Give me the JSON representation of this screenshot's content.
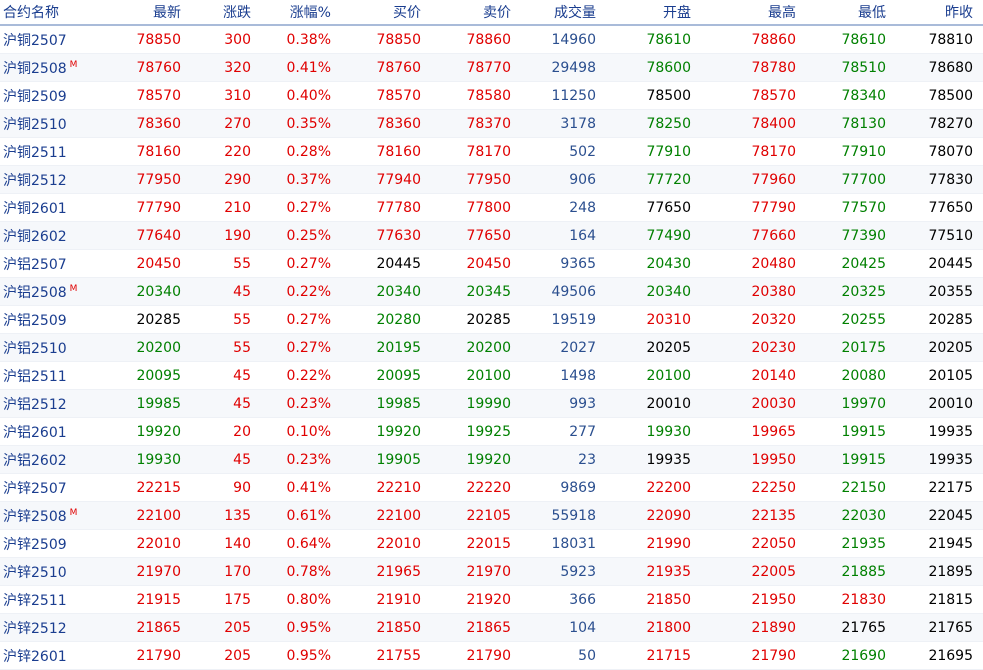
{
  "columns": [
    "合约名称",
    "最新",
    "涨跌",
    "涨幅%",
    "买价",
    "卖价",
    "成交量",
    "开盘",
    "最高",
    "最低",
    "昨收"
  ],
  "colors": {
    "up": "#e00000",
    "down": "#008000",
    "flat": "#000000",
    "volume": "#2b4f8f",
    "name": "#1a3d8f"
  },
  "rows": [
    {
      "name": "沪铜2507",
      "main": "",
      "last": "78850",
      "chg": "300",
      "pct": "0.38%",
      "bid": "78850",
      "ask": "78860",
      "vol": "14960",
      "open": "78610",
      "high": "78860",
      "low": "78610",
      "prev": "78810"
    },
    {
      "name": "沪铜2508",
      "main": "M",
      "last": "78760",
      "chg": "320",
      "pct": "0.41%",
      "bid": "78760",
      "ask": "78770",
      "vol": "29498",
      "open": "78600",
      "high": "78780",
      "low": "78510",
      "prev": "78680"
    },
    {
      "name": "沪铜2509",
      "main": "",
      "last": "78570",
      "chg": "310",
      "pct": "0.40%",
      "bid": "78570",
      "ask": "78580",
      "vol": "11250",
      "open": "78500",
      "high": "78570",
      "low": "78340",
      "prev": "78500"
    },
    {
      "name": "沪铜2510",
      "main": "",
      "last": "78360",
      "chg": "270",
      "pct": "0.35%",
      "bid": "78360",
      "ask": "78370",
      "vol": "3178",
      "open": "78250",
      "high": "78400",
      "low": "78130",
      "prev": "78270"
    },
    {
      "name": "沪铜2511",
      "main": "",
      "last": "78160",
      "chg": "220",
      "pct": "0.28%",
      "bid": "78160",
      "ask": "78170",
      "vol": "502",
      "open": "77910",
      "high": "78170",
      "low": "77910",
      "prev": "78070"
    },
    {
      "name": "沪铜2512",
      "main": "",
      "last": "77950",
      "chg": "290",
      "pct": "0.37%",
      "bid": "77940",
      "ask": "77950",
      "vol": "906",
      "open": "77720",
      "high": "77960",
      "low": "77700",
      "prev": "77830"
    },
    {
      "name": "沪铜2601",
      "main": "",
      "last": "77790",
      "chg": "210",
      "pct": "0.27%",
      "bid": "77780",
      "ask": "77800",
      "vol": "248",
      "open": "77650",
      "high": "77790",
      "low": "77570",
      "prev": "77650"
    },
    {
      "name": "沪铜2602",
      "main": "",
      "last": "77640",
      "chg": "190",
      "pct": "0.25%",
      "bid": "77630",
      "ask": "77650",
      "vol": "164",
      "open": "77490",
      "high": "77660",
      "low": "77390",
      "prev": "77510"
    },
    {
      "name": "沪铝2507",
      "main": "",
      "last": "20450",
      "chg": "55",
      "pct": "0.27%",
      "bid": "20445",
      "ask": "20450",
      "vol": "9365",
      "open": "20430",
      "high": "20480",
      "low": "20425",
      "prev": "20445"
    },
    {
      "name": "沪铝2508",
      "main": "M",
      "last": "20340",
      "chg": "45",
      "pct": "0.22%",
      "bid": "20340",
      "ask": "20345",
      "vol": "49506",
      "open": "20340",
      "high": "20380",
      "low": "20325",
      "prev": "20355"
    },
    {
      "name": "沪铝2509",
      "main": "",
      "last": "20285",
      "chg": "55",
      "pct": "0.27%",
      "bid": "20280",
      "ask": "20285",
      "vol": "19519",
      "open": "20310",
      "high": "20320",
      "low": "20255",
      "prev": "20285"
    },
    {
      "name": "沪铝2510",
      "main": "",
      "last": "20200",
      "chg": "55",
      "pct": "0.27%",
      "bid": "20195",
      "ask": "20200",
      "vol": "2027",
      "open": "20205",
      "high": "20230",
      "low": "20175",
      "prev": "20205"
    },
    {
      "name": "沪铝2511",
      "main": "",
      "last": "20095",
      "chg": "45",
      "pct": "0.22%",
      "bid": "20095",
      "ask": "20100",
      "vol": "1498",
      "open": "20100",
      "high": "20140",
      "low": "20080",
      "prev": "20105"
    },
    {
      "name": "沪铝2512",
      "main": "",
      "last": "19985",
      "chg": "45",
      "pct": "0.23%",
      "bid": "19985",
      "ask": "19990",
      "vol": "993",
      "open": "20010",
      "high": "20030",
      "low": "19970",
      "prev": "20010"
    },
    {
      "name": "沪铝2601",
      "main": "",
      "last": "19920",
      "chg": "20",
      "pct": "0.10%",
      "bid": "19920",
      "ask": "19925",
      "vol": "277",
      "open": "19930",
      "high": "19965",
      "low": "19915",
      "prev": "19935"
    },
    {
      "name": "沪铝2602",
      "main": "",
      "last": "19930",
      "chg": "45",
      "pct": "0.23%",
      "bid": "19905",
      "ask": "19920",
      "vol": "23",
      "open": "19935",
      "high": "19950",
      "low": "19915",
      "prev": "19935"
    },
    {
      "name": "沪锌2507",
      "main": "",
      "last": "22215",
      "chg": "90",
      "pct": "0.41%",
      "bid": "22210",
      "ask": "22220",
      "vol": "9869",
      "open": "22200",
      "high": "22250",
      "low": "22150",
      "prev": "22175"
    },
    {
      "name": "沪锌2508",
      "main": "M",
      "last": "22100",
      "chg": "135",
      "pct": "0.61%",
      "bid": "22100",
      "ask": "22105",
      "vol": "55918",
      "open": "22090",
      "high": "22135",
      "low": "22030",
      "prev": "22045"
    },
    {
      "name": "沪锌2509",
      "main": "",
      "last": "22010",
      "chg": "140",
      "pct": "0.64%",
      "bid": "22010",
      "ask": "22015",
      "vol": "18031",
      "open": "21990",
      "high": "22050",
      "low": "21935",
      "prev": "21945"
    },
    {
      "name": "沪锌2510",
      "main": "",
      "last": "21970",
      "chg": "170",
      "pct": "0.78%",
      "bid": "21965",
      "ask": "21970",
      "vol": "5923",
      "open": "21935",
      "high": "22005",
      "low": "21885",
      "prev": "21895"
    },
    {
      "name": "沪锌2511",
      "main": "",
      "last": "21915",
      "chg": "175",
      "pct": "0.80%",
      "bid": "21910",
      "ask": "21920",
      "vol": "366",
      "open": "21850",
      "high": "21950",
      "low": "21830",
      "prev": "21815"
    },
    {
      "name": "沪锌2512",
      "main": "",
      "last": "21865",
      "chg": "205",
      "pct": "0.95%",
      "bid": "21850",
      "ask": "21865",
      "vol": "104",
      "open": "21800",
      "high": "21890",
      "low": "21765",
      "prev": "21765"
    },
    {
      "name": "沪锌2601",
      "main": "",
      "last": "21790",
      "chg": "205",
      "pct": "0.95%",
      "bid": "21755",
      "ask": "21790",
      "vol": "50",
      "open": "21715",
      "high": "21790",
      "low": "21690",
      "prev": "21695"
    }
  ]
}
